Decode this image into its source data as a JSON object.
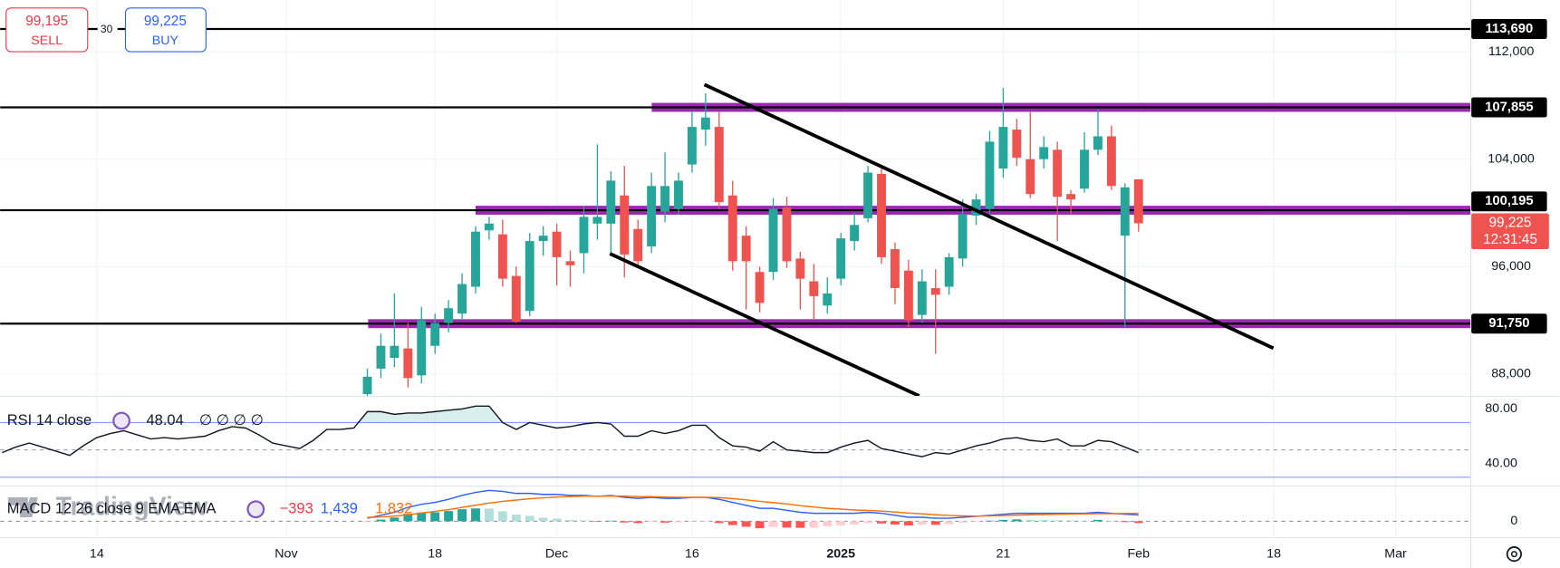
{
  "chart_data": {
    "type": "candlestick",
    "categories": [
      null,
      null,
      null,
      null,
      null,
      null,
      null,
      "14",
      null,
      null,
      null,
      null,
      null,
      null,
      null,
      null,
      null,
      null,
      null,
      null,
      null,
      "Nov",
      null,
      null,
      null,
      null,
      null,
      null,
      null,
      null,
      null,
      null,
      "18",
      null,
      null,
      null,
      null,
      null,
      null,
      null,
      null,
      "Dec",
      null,
      null,
      null,
      null,
      null,
      null,
      null,
      null,
      null,
      "16",
      null,
      null,
      null,
      null,
      null,
      null,
      null,
      null,
      null,
      null,
      "2025",
      null,
      null,
      null,
      null,
      null,
      null,
      null,
      null,
      null,
      null,
      null,
      "21",
      null,
      null,
      null,
      null,
      null,
      null,
      null,
      null,
      null,
      "Feb",
      null,
      null,
      null,
      null,
      null,
      null,
      null,
      null,
      null,
      "18",
      null,
      null,
      null,
      null,
      null,
      null,
      null,
      null,
      "Mar",
      null,
      null,
      null,
      null,
      null
    ],
    "ohlc": [
      null,
      null,
      null,
      null,
      null,
      null,
      null,
      null,
      null,
      null,
      null,
      null,
      null,
      null,
      null,
      null,
      null,
      null,
      null,
      null,
      null,
      null,
      null,
      null,
      null,
      null,
      null,
      [
        86500,
        88400,
        86300,
        87800
      ],
      [
        88400,
        91000,
        87700,
        90100
      ],
      [
        89200,
        94000,
        88500,
        90100
      ],
      [
        89900,
        91800,
        87000,
        87700
      ],
      [
        87900,
        93000,
        87300,
        92000
      ],
      [
        90100,
        92500,
        89500,
        91800
      ],
      [
        91800,
        93500,
        91100,
        92900
      ],
      [
        92500,
        95500,
        92000,
        94700
      ],
      [
        94500,
        99000,
        94000,
        98600
      ],
      [
        98700,
        99700,
        98000,
        99200
      ],
      [
        98400,
        99500,
        94500,
        95100
      ],
      [
        95300,
        96000,
        91800,
        91900
      ],
      [
        92700,
        98500,
        92300,
        97900
      ],
      [
        97900,
        99000,
        96800,
        98300
      ],
      [
        98600,
        99200,
        94600,
        96700
      ],
      [
        96400,
        97200,
        94500,
        96100
      ],
      [
        97000,
        100500,
        95500,
        99700
      ],
      [
        99200,
        105100,
        98000,
        99700
      ],
      [
        99200,
        103100,
        96900,
        102400
      ],
      [
        101300,
        103500,
        95200,
        96900
      ],
      [
        98800,
        99500,
        95900,
        96400
      ],
      [
        97500,
        103000,
        97000,
        102000
      ],
      [
        100100,
        104500,
        99300,
        102000
      ],
      [
        100300,
        103000,
        99900,
        102400
      ],
      [
        103600,
        107500,
        103000,
        106400
      ],
      [
        106200,
        108900,
        105000,
        107100
      ],
      [
        106400,
        107500,
        100300,
        100800
      ],
      [
        101300,
        102400,
        95700,
        96400
      ],
      [
        98300,
        99000,
        92800,
        96400
      ],
      [
        95600,
        96000,
        92600,
        93300
      ],
      [
        95600,
        101100,
        95000,
        100300
      ],
      [
        100400,
        101200,
        95900,
        96400
      ],
      [
        96600,
        97100,
        92800,
        95100
      ],
      [
        94900,
        96200,
        92100,
        93800
      ],
      [
        93100,
        95200,
        92500,
        94000
      ],
      [
        95100,
        98500,
        94600,
        98100
      ],
      [
        97900,
        100000,
        97200,
        99100
      ],
      [
        99600,
        103500,
        99300,
        103000
      ],
      [
        102900,
        103300,
        96200,
        96700
      ],
      [
        97300,
        97800,
        93200,
        94400
      ],
      [
        95700,
        96500,
        91500,
        92000
      ],
      [
        92400,
        95800,
        91800,
        94900
      ],
      [
        94400,
        95800,
        89500,
        93900
      ],
      [
        94500,
        97000,
        93900,
        96700
      ],
      [
        96600,
        101000,
        96000,
        99900
      ],
      [
        99800,
        101400,
        99100,
        101000
      ],
      [
        100300,
        106100,
        99900,
        105300
      ],
      [
        103300,
        109300,
        102600,
        106400
      ],
      [
        106200,
        107000,
        103500,
        104100
      ],
      [
        104000,
        107500,
        101100,
        101400
      ],
      [
        104000,
        105700,
        103300,
        104900
      ],
      [
        104700,
        105300,
        97900,
        101200
      ],
      [
        101400,
        101700,
        99900,
        101000
      ],
      [
        101800,
        106000,
        101500,
        104700
      ],
      [
        104700,
        107700,
        104300,
        105700
      ],
      [
        105700,
        106500,
        101700,
        102000
      ],
      [
        98300,
        102200,
        91500,
        101900
      ],
      [
        102500,
        102500,
        98600,
        99225
      ],
      null,
      null,
      null,
      null,
      null,
      null,
      null,
      null,
      null,
      null,
      null,
      null,
      null,
      null,
      null,
      null,
      null,
      null,
      null,
      null,
      null,
      null,
      null
    ],
    "up_color": "#26a69a",
    "down_color": "#ef5350",
    "ylim": [
      86370,
      115850
    ],
    "yticks": [
      {
        "value": 112000,
        "label": "112,000"
      },
      {
        "value": 104000,
        "label": "104,000"
      },
      {
        "value": 96000,
        "label": "96,000"
      },
      {
        "value": 88000,
        "label": "88,000"
      }
    ],
    "grid": true,
    "levels": [
      {
        "value": 113690,
        "label": "113,690"
      },
      {
        "value": 107855,
        "label": "107,855"
      },
      {
        "value": 100195,
        "label": "100,195"
      },
      {
        "value": 91750,
        "label": "91,750"
      }
    ],
    "level_color": "#000000",
    "zone_color": "#9c27b0",
    "last_price": {
      "value": 99225,
      "label": "99,225"
    },
    "countdown": "12:31:45",
    "trade": {
      "sell_price": "99,195",
      "sell": "SELL",
      "spread": 30,
      "buy_price": "99,225",
      "buy": "BUY"
    },
    "watermark": "TradingView",
    "rsi": {
      "title": "RSI 14 close",
      "extra": "∅ ∅ ∅ ∅",
      "color": "#131722",
      "band_color": "#2962ff",
      "values": [
        48,
        52,
        55,
        52,
        49,
        46,
        53,
        59,
        62,
        64,
        61,
        58,
        59,
        58,
        59,
        60,
        64,
        67,
        66,
        61,
        55,
        53,
        51,
        57,
        65,
        65,
        66,
        78,
        78,
        76,
        77,
        77,
        78,
        79,
        80,
        82,
        82,
        70,
        65,
        70,
        68,
        66,
        67,
        69,
        70,
        69,
        60,
        60,
        64,
        62,
        64,
        68,
        68,
        59,
        53,
        52,
        49,
        56,
        50,
        49,
        48,
        48,
        52,
        55,
        57,
        51,
        49,
        47,
        45,
        48,
        47,
        50,
        53,
        55,
        58,
        59,
        57,
        56,
        58,
        53,
        53,
        57,
        56,
        52,
        48.04,
        null,
        null,
        null,
        null,
        null,
        null,
        null,
        null,
        null,
        null,
        null,
        null,
        null,
        null,
        null,
        null,
        null,
        null,
        null,
        null,
        null,
        null,
        null
      ],
      "ylim": [
        24,
        89.5
      ],
      "yticks": [
        {
          "value": 80,
          "label": "80.00"
        },
        {
          "value": 40,
          "label": "40.00"
        }
      ],
      "bands": [
        70,
        30
      ],
      "midline": 50
    },
    "macd": {
      "title": "MACD 12 26 close 9 EMA EMA",
      "ylim": [
        -3680,
        8280
      ],
      "yticks": [
        0
      ],
      "series": [
        {
          "kind": "histogram",
          "color": "#26a69a",
          "readout": "−393",
          "values": [
            null,
            null,
            null,
            null,
            null,
            null,
            null,
            null,
            null,
            null,
            null,
            null,
            null,
            null,
            null,
            null,
            null,
            null,
            null,
            null,
            null,
            null,
            null,
            null,
            null,
            null,
            null,
            -210,
            380,
            870,
            1720,
            2010,
            2070,
            2360,
            2780,
            2970,
            2930,
            2300,
            1540,
            1240,
            810,
            610,
            280,
            180,
            -50,
            130,
            -280,
            -410,
            -180,
            -310,
            -260,
            -30,
            -30,
            -390,
            -880,
            -1270,
            -1610,
            -1310,
            -1470,
            -1530,
            -1460,
            -1160,
            -960,
            -760,
            -430,
            -510,
            -770,
            -980,
            -780,
            -810,
            -660,
            -330,
            -50,
            130,
            310,
            440,
            340,
            290,
            240,
            190,
            140,
            320,
            90,
            -190,
            -393,
            null,
            null,
            null,
            null,
            null,
            null,
            null,
            null,
            null,
            null,
            null,
            null,
            null,
            null,
            null,
            null,
            null,
            null,
            null,
            null,
            null,
            null,
            null
          ]
        },
        {
          "kind": "line",
          "color": "#2962ff",
          "readout": "1,439",
          "values": [
            null,
            null,
            null,
            null,
            null,
            null,
            null,
            null,
            null,
            null,
            null,
            null,
            null,
            null,
            null,
            null,
            null,
            null,
            null,
            null,
            null,
            null,
            null,
            null,
            null,
            null,
            null,
            690,
            1380,
            2070,
            3220,
            3910,
            4370,
            5060,
            5980,
            6670,
            7130,
            6900,
            6440,
            6440,
            6210,
            6210,
            5980,
            5980,
            5750,
            5980,
            5520,
            5290,
            5520,
            5290,
            5290,
            5520,
            5520,
            5060,
            4370,
            3680,
            2990,
            2990,
            2530,
            2070,
            1840,
            1840,
            1840,
            1840,
            2070,
            1840,
            1380,
            920,
            920,
            690,
            690,
            920,
            1150,
            1380,
            1610,
            1840,
            1840,
            1840,
            1840,
            1840,
            1840,
            2070,
            1840,
            1610,
            1439,
            null,
            null,
            null,
            null,
            null,
            null,
            null,
            null,
            null,
            null,
            null,
            null,
            null,
            null,
            null,
            null,
            null,
            null,
            null,
            null,
            null,
            null,
            null
          ]
        },
        {
          "kind": "line",
          "color": "#ff6d00",
          "readout": "1,832",
          "values": [
            null,
            null,
            null,
            null,
            null,
            null,
            null,
            null,
            null,
            null,
            null,
            null,
            null,
            null,
            null,
            null,
            null,
            null,
            null,
            null,
            null,
            null,
            null,
            null,
            null,
            null,
            null,
            900,
            1000,
            1200,
            1500,
            1900,
            2300,
            2700,
            3200,
            3700,
            4200,
            4600,
            4900,
            5200,
            5400,
            5600,
            5700,
            5800,
            5800,
            5850,
            5800,
            5700,
            5700,
            5600,
            5550,
            5550,
            5550,
            5450,
            5250,
            4950,
            4600,
            4300,
            4000,
            3600,
            3300,
            3000,
            2800,
            2600,
            2500,
            2350,
            2150,
            1900,
            1700,
            1500,
            1350,
            1250,
            1200,
            1250,
            1300,
            1400,
            1500,
            1550,
            1600,
            1650,
            1700,
            1750,
            1750,
            1800,
            1832,
            null,
            null,
            null,
            null,
            null,
            null,
            null,
            null,
            null,
            null,
            null,
            null,
            null,
            null,
            null,
            null,
            null,
            null,
            null,
            null,
            null,
            null,
            null
          ]
        }
      ]
    }
  }
}
